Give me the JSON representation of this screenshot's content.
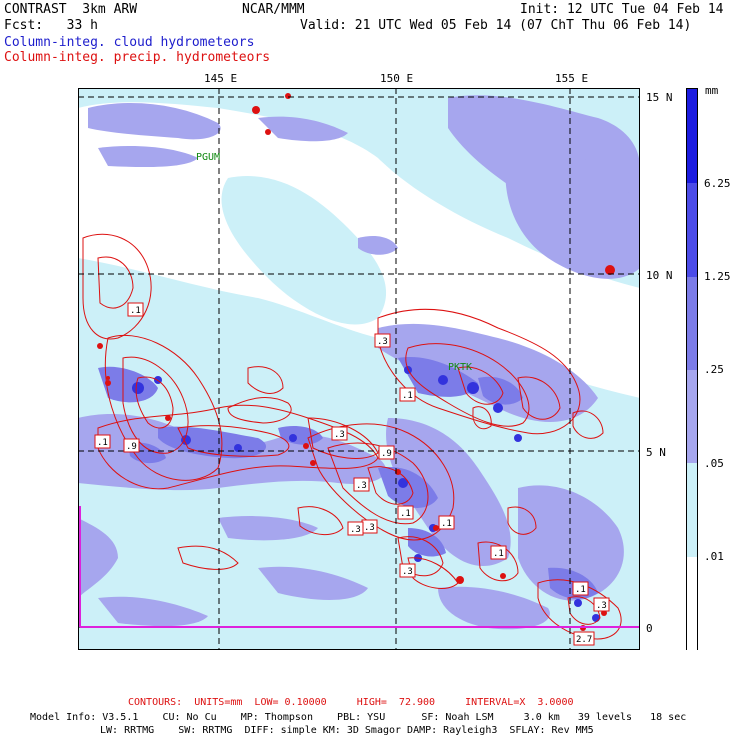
{
  "header": {
    "model": "CONTRAST  3km ARW",
    "org": "NCAR/MMM",
    "init": "Init: 12 UTC Tue 04 Feb 14",
    "fcst": "Fcst:   33 h",
    "valid": "Valid: 21 UTC Wed 05 Feb 14 (07 ChT Thu 06 Feb 14)",
    "field1": "Column-integ. cloud hydrometeors",
    "field2": "Column-integ. precip. hydrometeors"
  },
  "axes": {
    "lon_labels": [
      "145 E",
      "150 E",
      "155 E"
    ],
    "lat_labels": [
      "15 N",
      "10 N",
      "5 N",
      "0"
    ]
  },
  "colorbar": {
    "unit": "mm",
    "labels": [
      "6.25",
      "1.25",
      ".25",
      ".05",
      ".01"
    ],
    "colors": [
      "#1c1ce0",
      "#4c4ce8",
      "#7c7ce8",
      "#a6a6ee",
      "#ccf0f8",
      "#ffffff"
    ]
  },
  "stations": {
    "pgum": "PGUM",
    "pktk": "PKTK"
  },
  "contour_labels": [
    ".1",
    ".3",
    ".1",
    ".9",
    ".3",
    ".9",
    ".3",
    ".3",
    ".1",
    ".1",
    ".1",
    ".3",
    ".1",
    ".1",
    ".3",
    "2.7",
    ".3",
    ".1"
  ],
  "footer": {
    "contours": "CONTOURS:  UNITS=mm  LOW= 0.10000     HIGH=  72.900     INTERVAL=X  3.0000",
    "model_info_1": "Model Info: V3.5.1    CU: No Cu    MP: Thompson    PBL: YSU      SF: Noah LSM     3.0 km   39 levels   18 sec",
    "model_info_2": "LW: RRTMG    SW: RRTMG  DIFF: simple KM: 3D Smagor DAMP: Rayleigh3  SFLAY: Rev MM5"
  }
}
